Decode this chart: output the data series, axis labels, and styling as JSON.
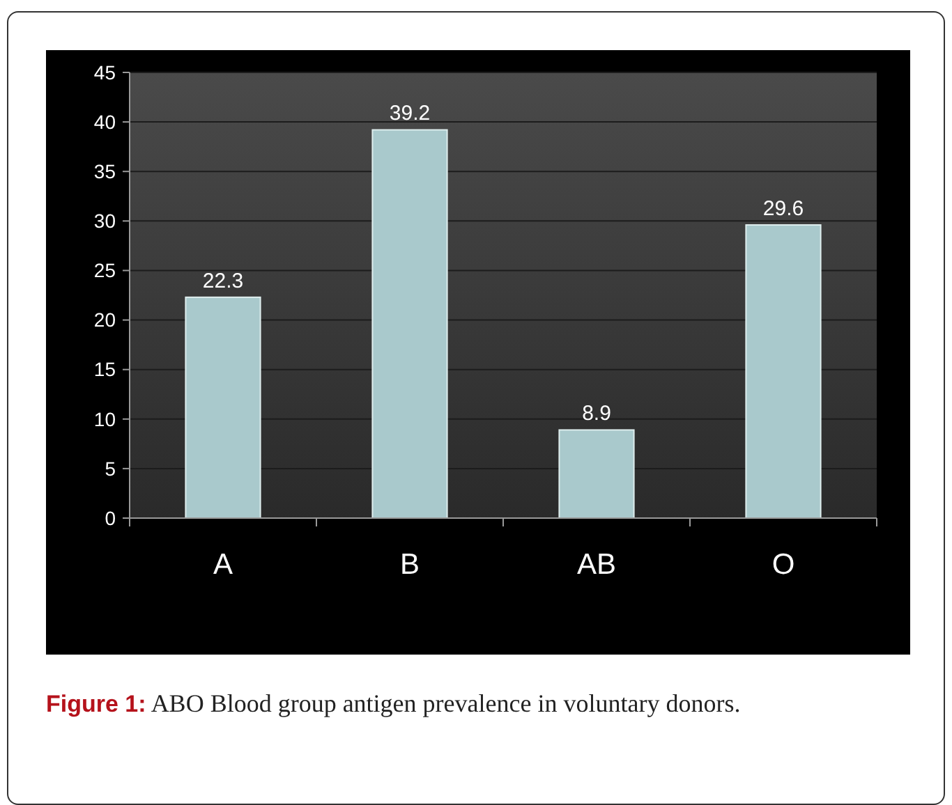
{
  "chart_data": {
    "type": "bar",
    "categories": [
      "A",
      "B",
      "AB",
      "O"
    ],
    "values": [
      22.3,
      39.2,
      8.9,
      29.6
    ],
    "color": "#a9c9cc",
    "ylim": [
      0,
      45
    ],
    "yticks": [
      0,
      5,
      10,
      15,
      20,
      25,
      30,
      35,
      40,
      45
    ],
    "grid": "y",
    "data_labels": true,
    "annotations": [
      "Figure 1:",
      "ABO Blood group antigen prevalence in voluntary donors."
    ]
  }
}
